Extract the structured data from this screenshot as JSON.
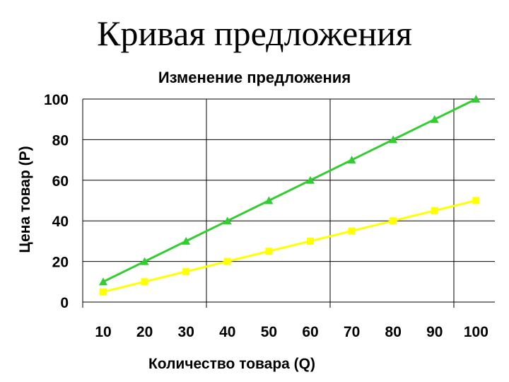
{
  "slide": {
    "title": "Кривая предложения"
  },
  "chart_data": {
    "type": "line",
    "title": "Изменение предложения",
    "xlabel": "Количество товара (Q)",
    "ylabel": "Цена товар (P)",
    "categories": [
      "10",
      "20",
      "30",
      "40",
      "50",
      "60",
      "70",
      "80",
      "90",
      "100"
    ],
    "yticks": [
      "0",
      "20",
      "40",
      "60",
      "80",
      "100"
    ],
    "ylim": [
      0,
      100
    ],
    "grid": true,
    "legend": "none",
    "series": [
      {
        "values": [
          10,
          20,
          30,
          40,
          50,
          60,
          70,
          80,
          90,
          100
        ],
        "color": "#33cc33",
        "marker": "triangle"
      },
      {
        "values": [
          5,
          10,
          15,
          20,
          25,
          30,
          35,
          40,
          45,
          50
        ],
        "color": "#ffff00",
        "marker": "square"
      }
    ]
  }
}
